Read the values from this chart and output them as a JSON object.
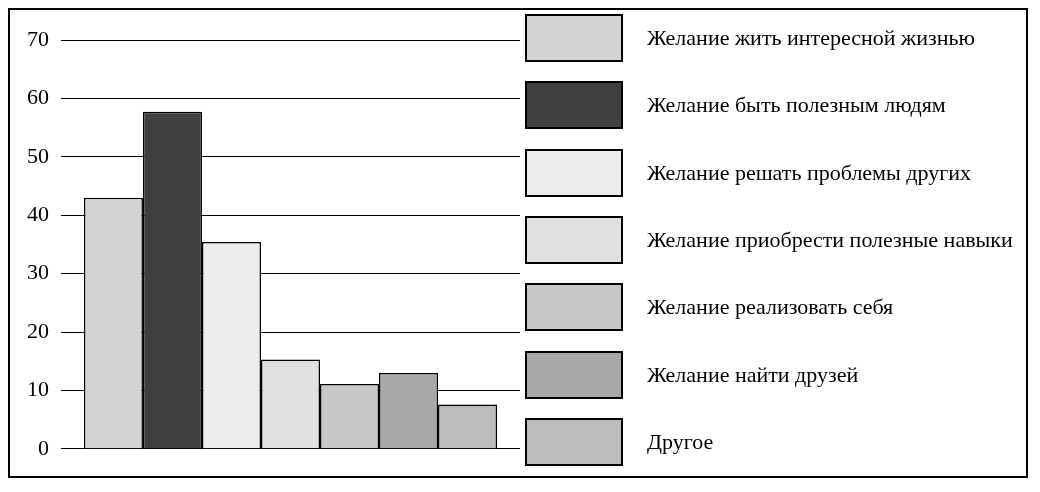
{
  "chart_data": {
    "type": "bar",
    "categories": [
      null
    ],
    "series": [
      {
        "name": "Желание жить интересной жизнью",
        "color": "#d4d4d4",
        "values": [
          43
        ]
      },
      {
        "name": "Желание быть полезным людям",
        "color": "#404040",
        "values": [
          57.7
        ]
      },
      {
        "name": "Желание решать проблемы других",
        "color": "#ececec",
        "values": [
          35.4
        ]
      },
      {
        "name": "Желание приобрести полезные навыки",
        "color": "#e0e0e0",
        "values": [
          15.3
        ]
      },
      {
        "name": "Желание реализовать себя",
        "color": "#c8c8c8",
        "values": [
          11.1
        ]
      },
      {
        "name": "Желание найти друзей",
        "color": "#a8a8a8",
        "values": [
          13
        ]
      },
      {
        "name": "Другое",
        "color": "#bcbcbc",
        "values": [
          7.6
        ]
      }
    ],
    "ylim": [
      0,
      70
    ],
    "yticks": [
      0,
      10,
      20,
      30,
      40,
      50,
      60,
      70
    ],
    "grid": "y",
    "legend": "right"
  }
}
